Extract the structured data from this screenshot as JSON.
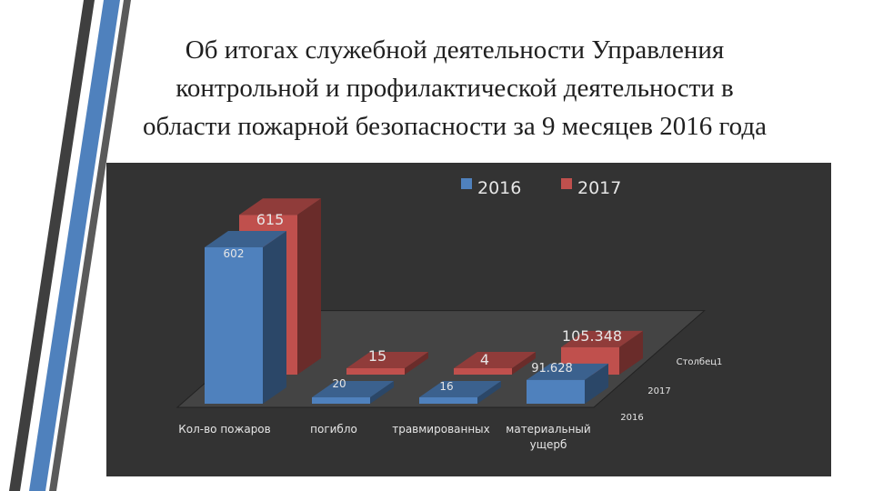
{
  "title": {
    "lines": [
      "Об итогах служебной деятельности Управления",
      "контрольной и профилактической деятельности в",
      "области пожарной безопасности за 9 месяцев 2016 года"
    ]
  },
  "colors": {
    "panel": "#333333",
    "series_2016": "#4f81bd",
    "series_2017": "#c0504d",
    "text": "#e6e6e6",
    "floor": "#444444"
  },
  "chart_data": {
    "type": "bar",
    "chart_style": "3d-clustered-column",
    "categories": [
      "Кол-во пожаров",
      "погибло",
      "травмированных",
      "материальный ущерб"
    ],
    "series": [
      {
        "name": "2016",
        "values": [
          602,
          20,
          16,
          91.628
        ],
        "color": "#4f81bd"
      },
      {
        "name": "2017",
        "values": [
          615,
          15,
          4,
          105.348
        ],
        "color": "#c0504d"
      }
    ],
    "data_labels": {
      "2016": [
        "602",
        "20",
        "16",
        "91.628"
      ],
      "2017": [
        "615",
        "15",
        "4",
        "105.348"
      ]
    },
    "depth_axis_labels": [
      "2016",
      "2017",
      "Столбец1"
    ],
    "legend": {
      "position": "top",
      "entries": [
        "2016",
        "2017"
      ]
    },
    "ylim": [
      0,
      700
    ],
    "grid": false
  }
}
